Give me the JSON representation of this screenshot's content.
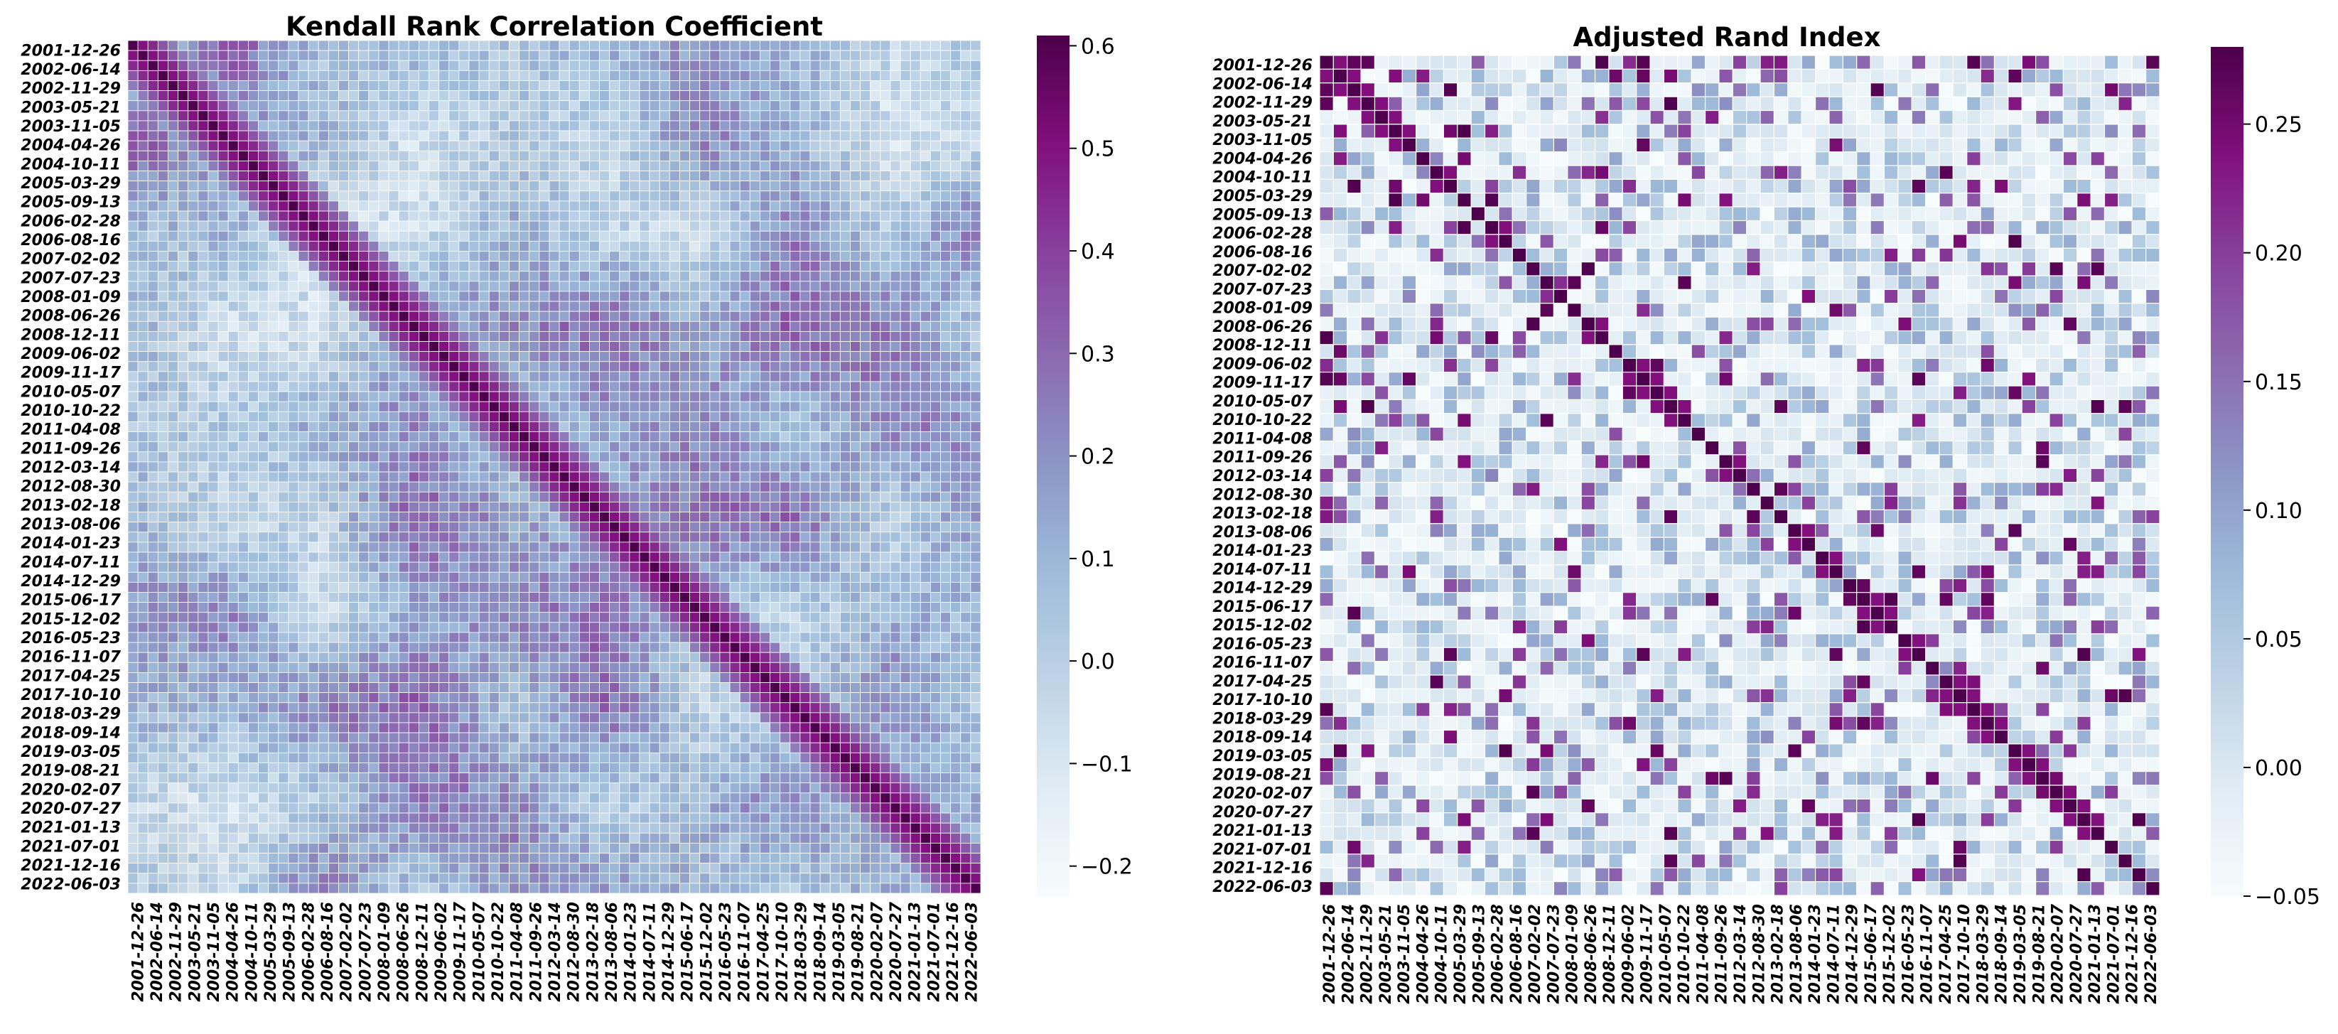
{
  "chart_data": [
    {
      "type": "heatmap",
      "title": "Kendall Rank Correlation Coefficient",
      "dimension": 85,
      "tick_labels": [
        "2001-12-26",
        "2002-06-14",
        "2002-11-29",
        "2003-05-21",
        "2003-11-05",
        "2004-04-26",
        "2004-10-11",
        "2005-03-29",
        "2005-09-13",
        "2006-02-28",
        "2006-08-16",
        "2007-02-02",
        "2007-07-23",
        "2008-01-09",
        "2008-06-26",
        "2008-12-11",
        "2009-06-02",
        "2009-11-17",
        "2010-05-07",
        "2010-10-22",
        "2011-04-08",
        "2011-09-26",
        "2012-03-14",
        "2012-08-30",
        "2013-02-18",
        "2013-08-06",
        "2014-01-23",
        "2014-07-11",
        "2014-12-29",
        "2015-06-17",
        "2015-12-02",
        "2016-05-23",
        "2016-11-07",
        "2017-04-25",
        "2017-10-10",
        "2018-03-29",
        "2018-09-14",
        "2019-03-05",
        "2019-08-21",
        "2020-02-07",
        "2020-07-27",
        "2021-01-13",
        "2021-07-01",
        "2021-12-16",
        "2022-06-03"
      ],
      "colormap": "BuPu",
      "vmin": -0.23,
      "vmax": 0.61,
      "colorbar_ticks": [
        "0.6",
        "0.5",
        "0.4",
        "0.3",
        "0.2",
        "0.1",
        "0.0",
        "−0.1",
        "−0.2"
      ],
      "colorbar_values": [
        0.6,
        0.5,
        0.4,
        0.3,
        0.2,
        0.1,
        0.0,
        -0.1,
        -0.2
      ],
      "diagonal_value": 0.61,
      "cell_band_values": [
        0.61,
        0.5,
        0.45,
        0.35,
        0.25
      ],
      "off_diagonal_range": [
        -0.23,
        0.45
      ],
      "seed": 7
    },
    {
      "type": "heatmap",
      "title": "Adjusted Rand Index",
      "dimension": 61,
      "tick_labels": [
        "2001-12-26",
        "2002-06-14",
        "2002-11-29",
        "2003-05-21",
        "2003-11-05",
        "2004-04-26",
        "2004-10-11",
        "2005-03-29",
        "2005-09-13",
        "2006-02-28",
        "2006-08-16",
        "2007-02-02",
        "2007-07-23",
        "2008-01-09",
        "2008-06-26",
        "2008-12-11",
        "2009-06-02",
        "2009-11-17",
        "2010-05-07",
        "2010-10-22",
        "2011-04-08",
        "2011-09-26",
        "2012-03-14",
        "2012-08-30",
        "2013-02-18",
        "2013-08-06",
        "2014-01-23",
        "2014-07-11",
        "2014-12-29",
        "2015-06-17",
        "2015-12-02",
        "2016-05-23",
        "2016-11-07",
        "2017-04-25",
        "2017-10-10",
        "2018-03-29",
        "2018-09-14",
        "2019-03-05",
        "2019-08-21",
        "2020-02-07",
        "2020-07-27",
        "2021-01-13",
        "2021-07-01",
        "2021-12-16",
        "2022-06-03"
      ],
      "colormap": "BuPu",
      "vmin": -0.05,
      "vmax": 0.28,
      "colorbar_ticks": [
        "0.25",
        "0.20",
        "0.15",
        "0.10",
        "0.05",
        "0.00",
        "−0.05"
      ],
      "colorbar_values": [
        0.25,
        0.2,
        0.15,
        0.1,
        0.05,
        0.0,
        -0.05
      ],
      "diagonal_value": 0.28,
      "cell_band_values": [
        0.28,
        0.1
      ],
      "off_diagonal_range": [
        -0.05,
        0.28
      ],
      "seed": 19
    }
  ]
}
